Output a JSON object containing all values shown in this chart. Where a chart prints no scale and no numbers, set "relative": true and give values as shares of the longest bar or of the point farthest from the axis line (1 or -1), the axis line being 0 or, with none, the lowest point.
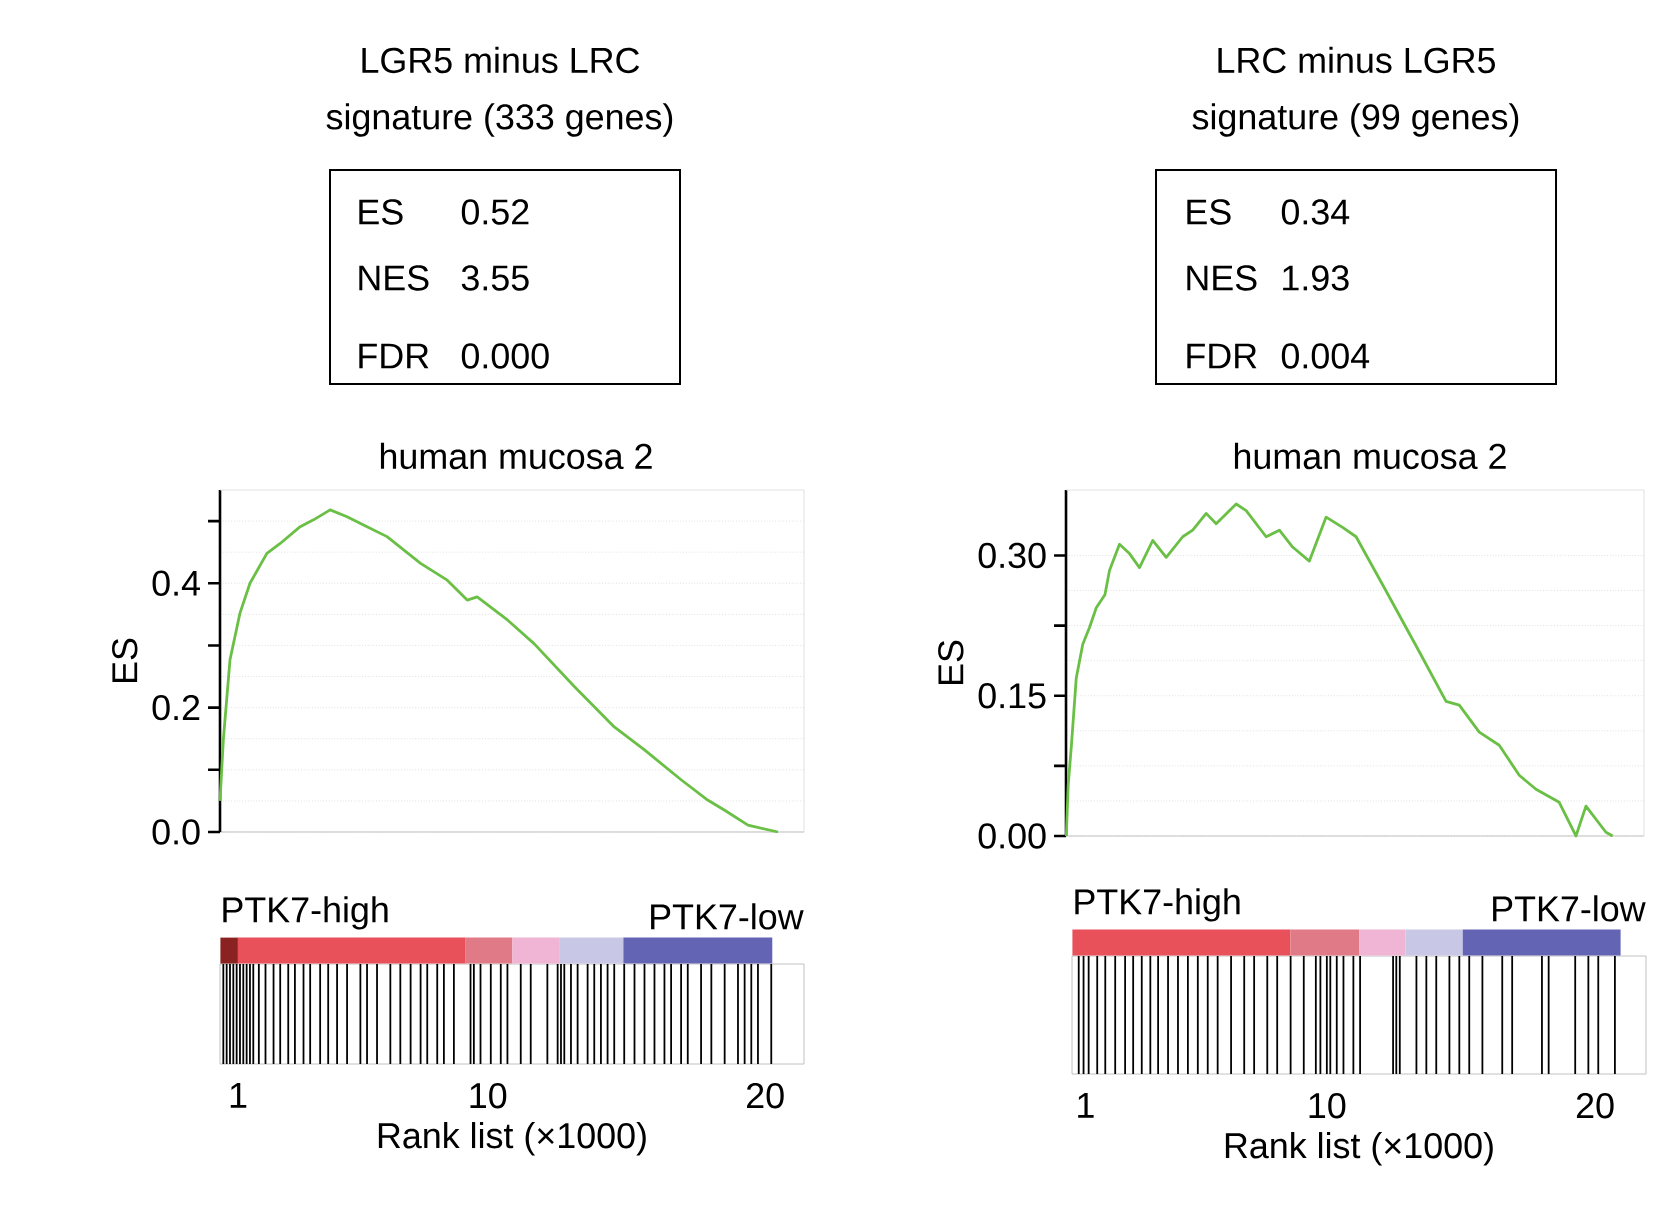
{
  "chart_data": [
    {
      "type": "line",
      "title": "LGR5 minus LRC",
      "subtitle": "signature (333 genes)",
      "ylabel": "ES",
      "annotations": [
        "human mucosa 2",
        "ES",
        "0.52",
        "NES",
        "3.55",
        "FDR",
        "0.000"
      ],
      "series": [
        {
          "color": "#6abf45",
          "x": [
            0.35,
            0.47,
            0.71,
            1.07,
            1.43,
            2.04,
            2.52,
            3.24,
            3.72,
            4.32,
            4.93,
            5.65,
            6.37,
            7.58,
            8.54,
            9.26,
            9.62,
            10.71,
            11.67,
            13.12,
            14.56,
            15.65,
            16.97,
            17.94,
            18.54,
            19.38,
            20.46
          ],
          "values": [
            0.05,
            0.148,
            0.277,
            0.352,
            0.4,
            0.448,
            0.464,
            0.491,
            0.502,
            0.518,
            0.507,
            0.491,
            0.475,
            0.432,
            0.405,
            0.373,
            0.378,
            0.341,
            0.303,
            0.234,
            0.169,
            0.132,
            0.084,
            0.051,
            0.035,
            0.011,
            0.0
          ]
        }
      ],
      "xlim": [
        0.35,
        21.4
      ],
      "ylim": [
        0,
        0.55
      ],
      "yticks": [
        {
          "value": 0,
          "label": "0.0"
        },
        {
          "value": 0.1,
          "label": null
        },
        {
          "value": 0.2,
          "label": "0.2"
        },
        {
          "value": 0.3,
          "label": null
        },
        {
          "value": 0.4,
          "label": "0.4"
        },
        {
          "value": 0.5,
          "label": null
        }
      ],
      "tick_labels": "y",
      "grid": "y",
      "line_style": "solid",
      "marker": "none"
    },
    {
      "type": "bar",
      "relative": true,
      "xlabel": "Rank list (×1000)",
      "annotations": [
        "PTK7-high",
        "PTK7-low"
      ],
      "color": "#000000",
      "x": [
        0.47,
        0.59,
        0.71,
        0.83,
        0.95,
        1.07,
        1.19,
        1.31,
        1.43,
        1.55,
        1.75,
        1.99,
        2.28,
        2.52,
        2.81,
        3.05,
        3.36,
        3.6,
        3.96,
        4.25,
        4.57,
        4.93,
        5.41,
        5.65,
        6.01,
        6.49,
        6.85,
        7.22,
        7.58,
        7.82,
        8.18,
        8.42,
        8.78,
        9.38,
        9.5,
        9.74,
        10.11,
        10.47,
        10.71,
        11.19,
        11.55,
        12.15,
        12.52,
        12.64,
        12.76,
        13.0,
        13.24,
        13.6,
        13.84,
        14.08,
        14.32,
        14.56,
        14.92,
        15.29,
        15.65,
        16.01,
        16.37,
        16.61,
        16.97,
        17.21,
        17.69,
        18.06,
        18.54,
        19.02,
        19.26,
        19.5,
        19.74,
        20.22
      ],
      "values": [
        1,
        1,
        1,
        1,
        1,
        1,
        1,
        1,
        1,
        1,
        1,
        1,
        1,
        1,
        1,
        1,
        1,
        1,
        1,
        1,
        1,
        1,
        1,
        1,
        1,
        1,
        1,
        1,
        1,
        1,
        1,
        1,
        1,
        1,
        1,
        1,
        1,
        1,
        1,
        1,
        1,
        1,
        1,
        1,
        1,
        1,
        1,
        1,
        1,
        1,
        1,
        1,
        1,
        1,
        1,
        1,
        1,
        1,
        1,
        1,
        1,
        1,
        1,
        1,
        1,
        1,
        1,
        1
      ],
      "xlim": [
        0.35,
        21.4
      ],
      "xticks": [
        1,
        10,
        20
      ]
    },
    {
      "type": "line",
      "title": "LRC minus LGR5",
      "subtitle": "signature (99 genes)",
      "ylabel": "ES",
      "annotations": [
        "human mucosa 2",
        "ES",
        "0.34",
        "NES",
        "1.93",
        "FDR",
        "0.004"
      ],
      "series": [
        {
          "color": "#6abf45",
          "x": [
            0.51,
            0.58,
            0.7,
            0.88,
            1.12,
            1.37,
            1.62,
            1.94,
            2.11,
            2.48,
            2.85,
            3.22,
            3.71,
            4.21,
            4.82,
            5.19,
            5.69,
            6.06,
            6.8,
            7.17,
            7.91,
            8.4,
            8.89,
            9.51,
            10.13,
            10.74,
            11.24,
            12.35,
            13.58,
            14.57,
            15.06,
            15.8,
            16.54,
            17.28,
            17.9,
            18.76,
            19.38,
            19.75,
            20.49,
            20.74
          ],
          "values": [
            0.0,
            0.054,
            0.097,
            0.169,
            0.205,
            0.223,
            0.244,
            0.258,
            0.284,
            0.312,
            0.302,
            0.287,
            0.316,
            0.298,
            0.32,
            0.327,
            0.345,
            0.334,
            0.355,
            0.348,
            0.32,
            0.327,
            0.309,
            0.294,
            0.341,
            0.33,
            0.32,
            0.262,
            0.197,
            0.144,
            0.14,
            0.111,
            0.097,
            0.065,
            0.05,
            0.036,
            0.0,
            0.032,
            0.004,
            0.0
          ]
        }
      ],
      "xlim": [
        0.5,
        21.9
      ],
      "ylim": [
        0,
        0.37
      ],
      "yticks": [
        {
          "value": 0,
          "label": "0.00"
        },
        {
          "value": 0.075,
          "label": null
        },
        {
          "value": 0.15,
          "label": "0.15"
        },
        {
          "value": 0.225,
          "label": null
        },
        {
          "value": 0.3,
          "label": "0.30"
        }
      ],
      "tick_labels": "y",
      "grid": "y",
      "line_style": "solid",
      "marker": "none"
    },
    {
      "type": "bar",
      "relative": true,
      "xlabel": "Rank list (×1000)",
      "annotations": [
        "PTK7-high",
        "PTK7-low"
      ],
      "color": "#000000",
      "x": [
        0.75,
        0.93,
        1.12,
        1.44,
        1.74,
        2.11,
        2.48,
        2.78,
        3.1,
        3.42,
        3.71,
        4.08,
        4.45,
        4.82,
        5.19,
        5.56,
        5.93,
        6.43,
        6.92,
        7.29,
        7.78,
        8.15,
        8.65,
        9.14,
        9.59,
        9.76,
        10.0,
        10.13,
        10.37,
        10.62,
        10.99,
        11.24,
        12.47,
        12.59,
        12.72,
        13.34,
        13.71,
        14.08,
        14.57,
        14.94,
        15.31,
        15.8,
        16.54,
        16.91,
        18.02,
        18.27,
        19.26,
        19.75,
        20.12,
        20.74
      ],
      "values": [
        1,
        1,
        1,
        1,
        1,
        1,
        1,
        1,
        1,
        1,
        1,
        1,
        1,
        1,
        1,
        1,
        1,
        1,
        1,
        1,
        1,
        1,
        1,
        1,
        1,
        1,
        1,
        1,
        1,
        1,
        1,
        1,
        1,
        1,
        1,
        1,
        1,
        1,
        1,
        1,
        1,
        1,
        1,
        1,
        1,
        1,
        1,
        1,
        1,
        1
      ],
      "xlim": [
        0.5,
        21.9
      ],
      "xticks": [
        1,
        10,
        20
      ]
    }
  ]
}
